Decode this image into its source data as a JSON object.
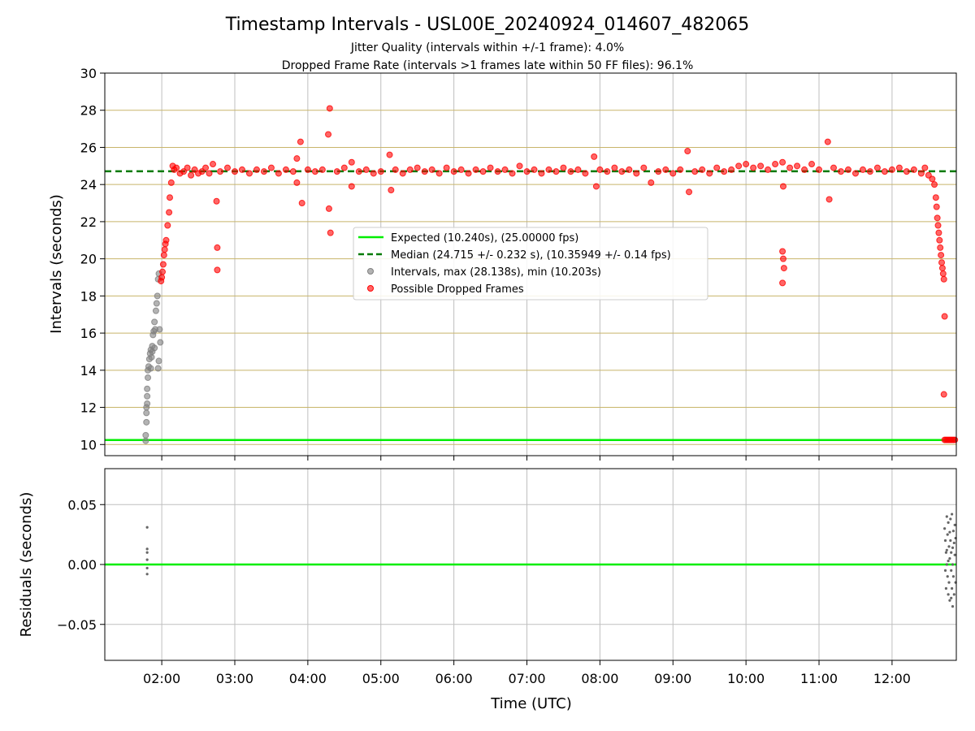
{
  "chart_data": [
    {
      "type": "scatter",
      "title": "Timestamp Intervals - USL00E_20240924_014607_482065",
      "subtitle_lines": [
        "Jitter Quality (intervals within +/-1 frame): 4.0%",
        "Dropped Frame Rate (intervals >1 frames late within 50 FF files): 96.1%"
      ],
      "xlabel": "",
      "ylabel": "Intervals (seconds)",
      "x_unit": "hours UTC",
      "xlim": [
        1.22,
        12.88
      ],
      "ylim": [
        9.4,
        30
      ],
      "yticks": [
        10,
        12,
        14,
        16,
        18,
        20,
        22,
        24,
        26,
        28,
        30
      ],
      "grid": "x vertical gray; y horizontal goldenrod",
      "legend_position": "center",
      "legend": [
        "Expected (10.240s), (25.00000 fps)",
        "Median (24.715 +/- 0.232 s), (10.35949 +/- 0.14 fps)",
        "Intervals, max (28.138s), min (10.203s)",
        "Possible Dropped Frames"
      ],
      "colors": {
        "expected": "#00ee00",
        "median": "#007a00",
        "intervals": "#808080",
        "dropped": "#ff0000",
        "ygrid": "#c8b56a",
        "xgrid": "#bfbfbf"
      },
      "expected_value": 10.24,
      "median_value": 24.715,
      "series": [
        {
          "name": "Intervals, max (28.138s), min (10.203s)",
          "points": [
            [
              1.78,
              10.2
            ],
            [
              1.78,
              10.5
            ],
            [
              1.79,
              11.2
            ],
            [
              1.79,
              11.7
            ],
            [
              1.79,
              12.0
            ],
            [
              1.8,
              12.2
            ],
            [
              1.8,
              12.6
            ],
            [
              1.8,
              13.0
            ],
            [
              1.81,
              13.6
            ],
            [
              1.81,
              14.0
            ],
            [
              1.82,
              14.2
            ],
            [
              1.83,
              14.6
            ],
            [
              1.84,
              14.9
            ],
            [
              1.85,
              15.1
            ],
            [
              1.86,
              14.7
            ],
            [
              1.87,
              15.3
            ],
            [
              1.88,
              15.9
            ],
            [
              1.89,
              16.1
            ],
            [
              1.9,
              16.6
            ],
            [
              1.9,
              15.2
            ],
            [
              1.91,
              16.2
            ],
            [
              1.92,
              17.2
            ],
            [
              1.93,
              17.6
            ],
            [
              1.94,
              18.0
            ],
            [
              1.95,
              18.9
            ],
            [
              1.95,
              14.1
            ],
            [
              1.96,
              19.2
            ],
            [
              1.96,
              14.5
            ],
            [
              1.97,
              16.2
            ],
            [
              1.98,
              15.5
            ],
            [
              1.85,
              14.1
            ],
            [
              1.87,
              15.0
            ]
          ]
        },
        {
          "name": "Possible Dropped Frames",
          "points": [
            [
              1.99,
              18.8
            ],
            [
              2.0,
              19.0
            ],
            [
              2.01,
              19.3
            ],
            [
              2.02,
              19.7
            ],
            [
              2.03,
              20.2
            ],
            [
              2.04,
              20.5
            ],
            [
              2.05,
              20.8
            ],
            [
              2.06,
              21.0
            ],
            [
              2.08,
              21.8
            ],
            [
              2.1,
              22.5
            ],
            [
              2.11,
              23.3
            ],
            [
              2.13,
              24.1
            ],
            [
              2.15,
              25.0
            ],
            [
              2.17,
              24.8
            ],
            [
              2.2,
              24.9
            ],
            [
              2.25,
              24.6
            ],
            [
              2.3,
              24.7
            ],
            [
              2.35,
              24.9
            ],
            [
              2.4,
              24.5
            ],
            [
              2.45,
              24.8
            ],
            [
              2.5,
              24.6
            ],
            [
              2.55,
              24.7
            ],
            [
              2.6,
              24.9
            ],
            [
              2.65,
              24.6
            ],
            [
              2.7,
              25.1
            ],
            [
              2.75,
              23.1
            ],
            [
              2.76,
              20.6
            ],
            [
              2.76,
              19.4
            ],
            [
              2.8,
              24.7
            ],
            [
              2.9,
              24.9
            ],
            [
              3.0,
              24.7
            ],
            [
              3.1,
              24.8
            ],
            [
              3.2,
              24.6
            ],
            [
              3.3,
              24.8
            ],
            [
              3.4,
              24.7
            ],
            [
              3.5,
              24.9
            ],
            [
              3.6,
              24.6
            ],
            [
              3.7,
              24.8
            ],
            [
              3.8,
              24.7
            ],
            [
              3.85,
              25.4
            ],
            [
              3.85,
              24.1
            ],
            [
              3.9,
              26.3
            ],
            [
              3.92,
              23.0
            ],
            [
              4.0,
              24.8
            ],
            [
              4.1,
              24.7
            ],
            [
              4.2,
              24.8
            ],
            [
              4.28,
              26.7
            ],
            [
              4.3,
              28.1
            ],
            [
              4.29,
              22.7
            ],
            [
              4.31,
              21.4
            ],
            [
              4.4,
              24.7
            ],
            [
              4.5,
              24.9
            ],
            [
              4.6,
              25.2
            ],
            [
              4.6,
              23.9
            ],
            [
              4.7,
              24.7
            ],
            [
              4.8,
              24.8
            ],
            [
              4.9,
              24.6
            ],
            [
              5.0,
              24.7
            ],
            [
              5.12,
              25.6
            ],
            [
              5.14,
              23.7
            ],
            [
              5.2,
              24.8
            ],
            [
              5.3,
              24.6
            ],
            [
              5.4,
              24.8
            ],
            [
              5.5,
              24.9
            ],
            [
              5.6,
              24.7
            ],
            [
              5.7,
              24.8
            ],
            [
              5.8,
              24.6
            ],
            [
              5.9,
              24.9
            ],
            [
              6.0,
              24.7
            ],
            [
              6.1,
              24.8
            ],
            [
              6.2,
              24.6
            ],
            [
              6.3,
              24.8
            ],
            [
              6.4,
              24.7
            ],
            [
              6.5,
              24.9
            ],
            [
              6.6,
              24.7
            ],
            [
              6.7,
              24.8
            ],
            [
              6.8,
              24.6
            ],
            [
              6.9,
              25.0
            ],
            [
              7.0,
              24.7
            ],
            [
              7.1,
              24.8
            ],
            [
              7.2,
              24.6
            ],
            [
              7.3,
              24.8
            ],
            [
              7.4,
              24.7
            ],
            [
              7.5,
              24.9
            ],
            [
              7.6,
              24.7
            ],
            [
              7.7,
              24.8
            ],
            [
              7.8,
              24.6
            ],
            [
              7.92,
              25.5
            ],
            [
              7.95,
              23.9
            ],
            [
              8.0,
              24.8
            ],
            [
              8.1,
              24.7
            ],
            [
              8.2,
              24.9
            ],
            [
              8.3,
              24.7
            ],
            [
              8.4,
              24.8
            ],
            [
              8.5,
              24.6
            ],
            [
              8.6,
              24.9
            ],
            [
              8.7,
              24.1
            ],
            [
              8.8,
              24.7
            ],
            [
              8.9,
              24.8
            ],
            [
              9.0,
              24.6
            ],
            [
              9.1,
              24.8
            ],
            [
              9.2,
              25.8
            ],
            [
              9.22,
              23.6
            ],
            [
              9.3,
              24.7
            ],
            [
              9.4,
              24.8
            ],
            [
              9.5,
              24.6
            ],
            [
              9.6,
              24.9
            ],
            [
              9.7,
              24.7
            ],
            [
              9.8,
              24.8
            ],
            [
              9.9,
              25.0
            ],
            [
              10.0,
              25.1
            ],
            [
              10.1,
              24.9
            ],
            [
              10.2,
              25.0
            ],
            [
              10.3,
              24.8
            ],
            [
              10.4,
              25.1
            ],
            [
              10.5,
              25.2
            ],
            [
              10.51,
              23.9
            ],
            [
              10.5,
              20.4
            ],
            [
              10.51,
              20.0
            ],
            [
              10.52,
              19.5
            ],
            [
              10.5,
              18.7
            ],
            [
              10.6,
              24.9
            ],
            [
              10.7,
              25.0
            ],
            [
              10.8,
              24.8
            ],
            [
              10.9,
              25.1
            ],
            [
              11.0,
              24.8
            ],
            [
              11.12,
              26.3
            ],
            [
              11.14,
              23.2
            ],
            [
              11.2,
              24.9
            ],
            [
              11.3,
              24.7
            ],
            [
              11.4,
              24.8
            ],
            [
              11.5,
              24.6
            ],
            [
              11.6,
              24.8
            ],
            [
              11.7,
              24.7
            ],
            [
              11.8,
              24.9
            ],
            [
              11.9,
              24.7
            ],
            [
              12.0,
              24.8
            ],
            [
              12.1,
              24.9
            ],
            [
              12.2,
              24.7
            ],
            [
              12.3,
              24.8
            ],
            [
              12.4,
              24.6
            ],
            [
              12.45,
              24.9
            ],
            [
              12.5,
              24.5
            ],
            [
              12.55,
              24.3
            ],
            [
              12.58,
              24.0
            ],
            [
              12.6,
              23.3
            ],
            [
              12.61,
              22.8
            ],
            [
              12.62,
              22.2
            ],
            [
              12.63,
              21.8
            ],
            [
              12.64,
              21.4
            ],
            [
              12.65,
              21.0
            ],
            [
              12.66,
              20.6
            ],
            [
              12.67,
              20.2
            ],
            [
              12.68,
              19.8
            ],
            [
              12.69,
              19.5
            ],
            [
              12.7,
              19.2
            ],
            [
              12.71,
              18.9
            ],
            [
              12.72,
              16.9
            ],
            [
              12.71,
              12.7
            ],
            [
              12.72,
              10.25
            ],
            [
              12.74,
              10.25
            ],
            [
              12.76,
              10.25
            ],
            [
              12.78,
              10.25
            ],
            [
              12.8,
              10.25
            ],
            [
              12.82,
              10.25
            ],
            [
              12.84,
              10.25
            ],
            [
              12.86,
              10.25
            ]
          ]
        }
      ]
    },
    {
      "type": "scatter",
      "title": "",
      "xlabel": "Time (UTC)",
      "ylabel": "Residuals (seconds)",
      "xlim": [
        1.22,
        12.88
      ],
      "ylim": [
        -0.08,
        0.08
      ],
      "yticks": [
        {
          "value": 0.05,
          "label": "0.05"
        },
        {
          "value": 0.0,
          "label": "0.00"
        },
        {
          "value": -0.05,
          "label": "−0.05"
        }
      ],
      "xticks": [
        {
          "value": 2,
          "label": "02:00"
        },
        {
          "value": 3,
          "label": "03:00"
        },
        {
          "value": 4,
          "label": "04:00"
        },
        {
          "value": 5,
          "label": "05:00"
        },
        {
          "value": 6,
          "label": "06:00"
        },
        {
          "value": 7,
          "label": "07:00"
        },
        {
          "value": 8,
          "label": "08:00"
        },
        {
          "value": 9,
          "label": "09:00"
        },
        {
          "value": 10,
          "label": "10:00"
        },
        {
          "value": 11,
          "label": "11:00"
        },
        {
          "value": 12,
          "label": "12:00"
        }
      ],
      "zero_line_value": 0.0,
      "series": [
        {
          "name": "",
          "points": [
            [
              1.8,
              0.031
            ],
            [
              1.8,
              0.013
            ],
            [
              1.8,
              0.01
            ],
            [
              1.8,
              0.004
            ],
            [
              1.8,
              -0.003
            ],
            [
              1.8,
              -0.008
            ],
            [
              12.72,
              0.03
            ],
            [
              12.73,
              0.02
            ],
            [
              12.74,
              0.01
            ],
            [
              12.74,
              -0.02
            ],
            [
              12.75,
              0.04
            ],
            [
              12.75,
              0.0
            ],
            [
              12.76,
              -0.01
            ],
            [
              12.76,
              0.025
            ],
            [
              12.77,
              -0.025
            ],
            [
              12.77,
              0.035
            ],
            [
              12.78,
              0.015
            ],
            [
              12.78,
              -0.015
            ],
            [
              12.79,
              0.005
            ],
            [
              12.79,
              -0.03
            ],
            [
              12.8,
              0.038
            ],
            [
              12.8,
              0.02
            ],
            [
              12.81,
              -0.005
            ],
            [
              12.81,
              0.01
            ],
            [
              12.82,
              -0.02
            ],
            [
              12.82,
              0.042
            ],
            [
              12.83,
              0.0
            ],
            [
              12.83,
              -0.035
            ],
            [
              12.84,
              0.028
            ],
            [
              12.84,
              -0.01
            ],
            [
              12.85,
              0.018
            ],
            [
              12.85,
              -0.025
            ],
            [
              12.86,
              0.008
            ],
            [
              12.86,
              0.033
            ],
            [
              12.87,
              -0.015
            ],
            [
              12.87,
              0.022
            ],
            [
              12.73,
              -0.005
            ],
            [
              12.75,
              0.012
            ],
            [
              12.77,
              0.003
            ],
            [
              12.79,
              0.027
            ],
            [
              12.81,
              -0.028
            ],
            [
              12.83,
              0.014
            ]
          ]
        }
      ]
    }
  ]
}
